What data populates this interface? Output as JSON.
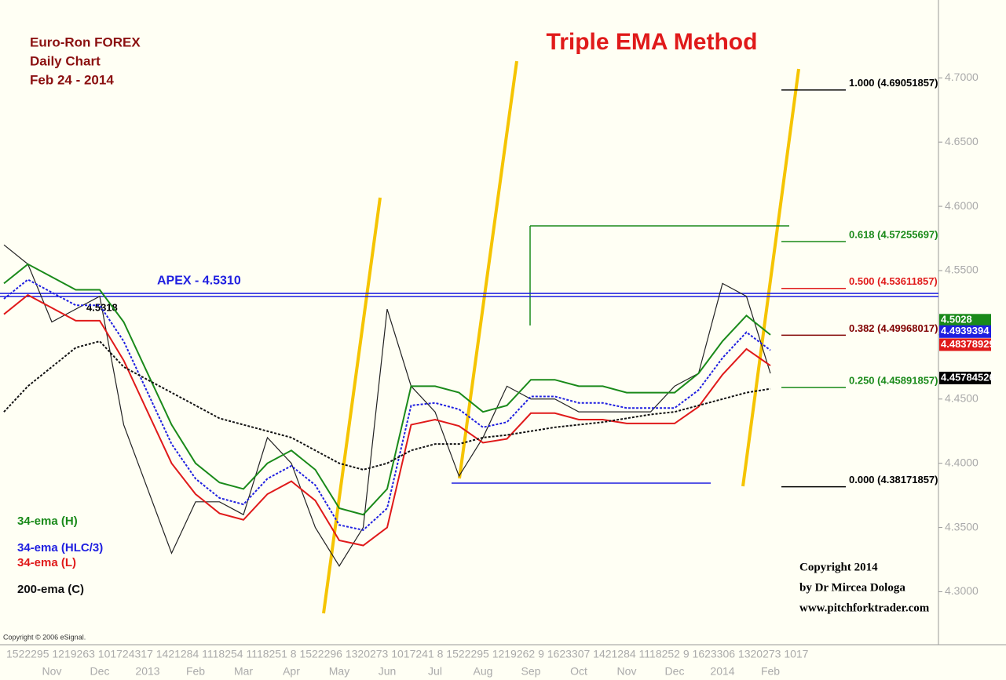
{
  "chart_data": {
    "type": "line",
    "title": "Triple EMA Method",
    "subtitle": [
      "Euro-Ron FOREX",
      "Daily Chart",
      "Feb 24 - 2014"
    ],
    "categories": [
      null,
      null,
      "Nov",
      null,
      "Dec",
      null,
      "2013",
      null,
      "Feb",
      null,
      "Mar",
      null,
      "Apr",
      null,
      "May",
      null,
      "Jun",
      null,
      "Jul",
      null,
      "Aug",
      null,
      "Sep",
      null,
      "Oct",
      null,
      "Nov",
      null,
      "Dec",
      null,
      "2014",
      null,
      "Feb"
    ],
    "day_row": "1522295  1219263  101724317  1421284  1118254  1118251  8  1522296  1320273  1017241  8  1522295  1219262  9  1623307  1421284  1118252  9  1623306  1320273  1017",
    "ylim": [
      4.26,
      4.76
    ],
    "yticks": [
      {
        "value": 4.3,
        "label": "4.3000"
      },
      {
        "value": 4.35,
        "label": "4.3500"
      },
      {
        "value": 4.4,
        "label": "4.4000"
      },
      {
        "value": 4.45,
        "label": "4.4500"
      },
      {
        "value": 4.5,
        "label": "4.5000"
      },
      {
        "value": 4.55,
        "label": "4.5500"
      },
      {
        "value": 4.6,
        "label": "4.6000"
      },
      {
        "value": 4.65,
        "label": "4.6500"
      },
      {
        "value": 4.7,
        "label": "4.7000"
      }
    ],
    "series": [
      {
        "color": "#222222",
        "values": [
          4.57,
          4.555,
          4.51,
          4.52,
          4.53,
          4.43,
          4.38,
          4.33,
          4.37,
          4.37,
          4.36,
          4.42,
          4.4,
          4.35,
          4.32,
          4.35,
          4.52,
          4.46,
          4.44,
          4.39,
          4.42,
          4.46,
          4.45,
          4.45,
          4.44,
          4.44,
          4.44,
          4.44,
          4.46,
          4.47,
          4.54,
          4.53,
          4.47
        ]
      },
      {
        "name": "34-ema (H)",
        "color": "#1a8a1a",
        "values": [
          4.54,
          4.555,
          4.545,
          4.535,
          4.535,
          4.51,
          4.47,
          4.43,
          4.4,
          4.385,
          4.38,
          4.4,
          4.41,
          4.395,
          4.365,
          4.36,
          4.38,
          4.46,
          4.46,
          4.455,
          4.44,
          4.445,
          4.465,
          4.465,
          4.46,
          4.46,
          4.455,
          4.455,
          4.455,
          4.47,
          4.495,
          4.515,
          4.5
        ]
      },
      {
        "name": "34-ema (HLC/3)",
        "color": "#1f1fe0",
        "dashed": true,
        "values": [
          4.528,
          4.543,
          4.533,
          4.523,
          4.523,
          4.495,
          4.455,
          4.415,
          4.388,
          4.373,
          4.368,
          4.388,
          4.398,
          4.383,
          4.352,
          4.348,
          4.365,
          4.445,
          4.447,
          4.442,
          4.428,
          4.432,
          4.452,
          4.452,
          4.447,
          4.447,
          4.443,
          4.443,
          4.443,
          4.457,
          4.482,
          4.502,
          4.488
        ]
      },
      {
        "name": "34-ema (L)",
        "color": "#e01a1a",
        "values": [
          4.516,
          4.531,
          4.521,
          4.511,
          4.511,
          4.48,
          4.44,
          4.4,
          4.376,
          4.361,
          4.356,
          4.376,
          4.386,
          4.371,
          4.34,
          4.336,
          4.35,
          4.43,
          4.434,
          4.429,
          4.416,
          4.419,
          4.439,
          4.439,
          4.434,
          4.434,
          4.431,
          4.431,
          4.431,
          4.444,
          4.469,
          4.489,
          4.476
        ]
      },
      {
        "name": "200-ema (C)",
        "color": "#111111",
        "dashed": true,
        "values": [
          4.44,
          4.46,
          4.475,
          4.49,
          4.495,
          4.475,
          4.465,
          4.455,
          4.445,
          4.435,
          4.43,
          4.425,
          4.42,
          4.41,
          4.4,
          4.395,
          4.4,
          4.41,
          4.415,
          4.415,
          4.42,
          4.422,
          4.425,
          4.428,
          4.43,
          4.432,
          4.435,
          4.438,
          4.44,
          4.445,
          4.45,
          4.455,
          4.458
        ]
      }
    ],
    "apex": {
      "label": "APEX - 4.5310",
      "value": 4.531,
      "color": "#1f1fe0"
    },
    "fib_levels": [
      {
        "label": "1.000 (4.69051857)",
        "value": 4.69051857,
        "color": "#000000"
      },
      {
        "label": "0.618 (4.57255697)",
        "value": 4.57255697,
        "color": "#1a8a1a"
      },
      {
        "label": "0.500 (4.53611857)",
        "value": 4.53611857,
        "color": "#e01a1a"
      },
      {
        "label": "0.382 (4.49968017)",
        "value": 4.49968017,
        "color": "#800000"
      },
      {
        "label": "0.250 (4.45891857)",
        "value": 4.45891857,
        "color": "#1a8a1a"
      },
      {
        "label": "0.000 (4.38171857)",
        "value": 4.38171857,
        "color": "#000000"
      }
    ],
    "price_labels": [
      {
        "value": 4.5028,
        "color": "#1a8a1a"
      },
      {
        "value": 4.4939394,
        "color": "#1f1fe0"
      },
      {
        "value": 4.48378929,
        "color": "#e01a1a"
      },
      {
        "value": 4.45784526,
        "color": "#000000"
      }
    ],
    "marker_text": "4.5318",
    "copyright": [
      "Copyright 2014",
      "by Dr Mircea Dologa",
      "www.pitchforktrader.com"
    ],
    "source": "Copyright © 2006 eSignal."
  }
}
